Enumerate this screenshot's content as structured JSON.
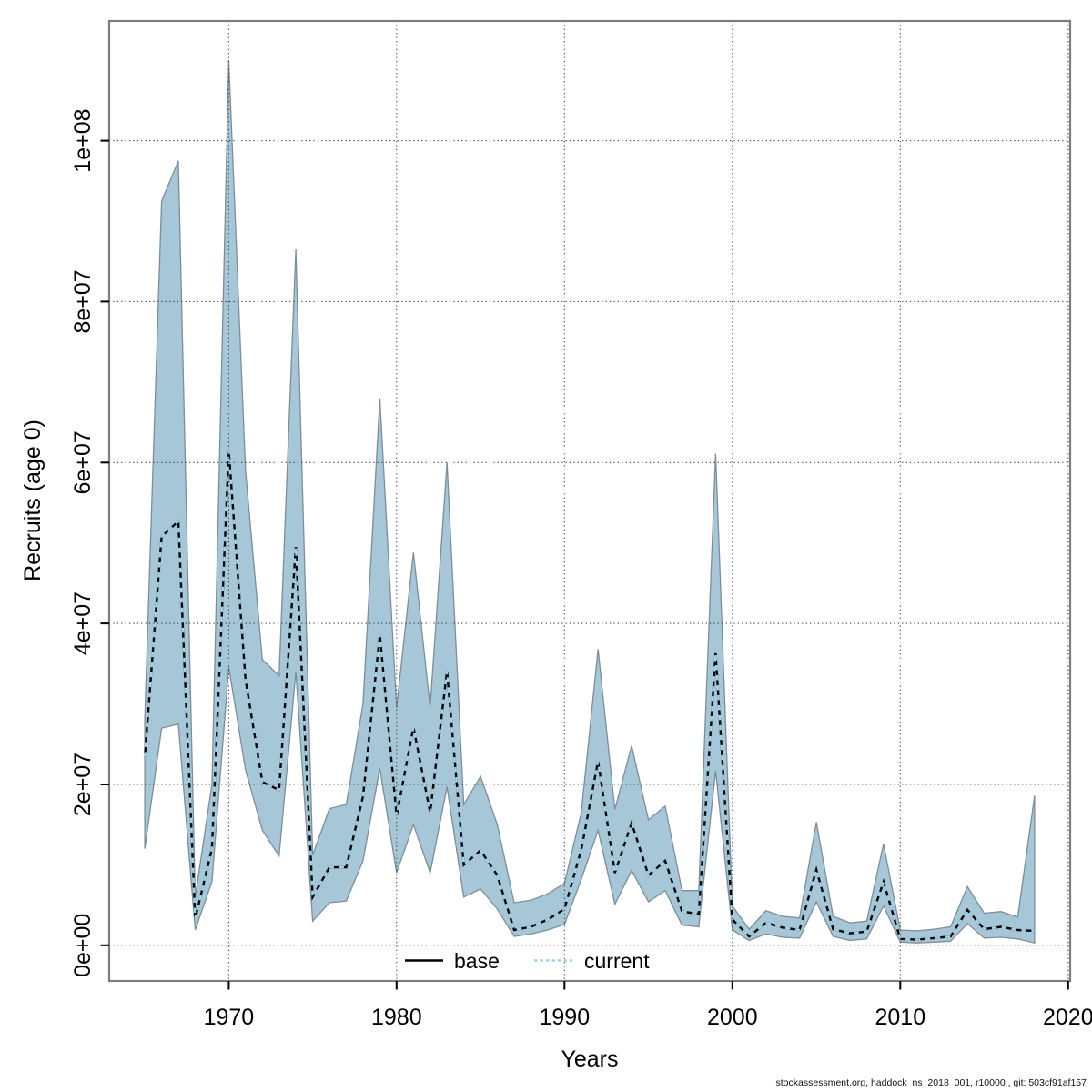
{
  "chart_data": {
    "type": "area",
    "title": "",
    "xlabel": "Years",
    "ylabel": "Recruits (age 0)",
    "x": [
      1965,
      1966,
      1967,
      1968,
      1969,
      1970,
      1971,
      1972,
      1973,
      1974,
      1975,
      1976,
      1977,
      1978,
      1979,
      1980,
      1981,
      1982,
      1983,
      1984,
      1985,
      1986,
      1987,
      1988,
      1989,
      1990,
      1991,
      1992,
      1993,
      1994,
      1995,
      1996,
      1997,
      1998,
      1999,
      2000,
      2001,
      2002,
      2003,
      2004,
      2005,
      2006,
      2007,
      2008,
      2009,
      2010,
      2011,
      2012,
      2013,
      2014,
      2015,
      2016,
      2017,
      2018
    ],
    "series": [
      {
        "name": "current (median recruitment)",
        "values": [
          23400000,
          50800000,
          52700000,
          3300000,
          12000000,
          61500000,
          33000000,
          20300000,
          19300000,
          49500000,
          6000000,
          9700000,
          9700000,
          18500000,
          38600000,
          16100000,
          27100000,
          16500000,
          34100000,
          10000000,
          11800000,
          8700000,
          1900000,
          2300000,
          3200000,
          4500000,
          11900000,
          22900000,
          9000000,
          15200000,
          8700000,
          10500000,
          4200000,
          3900000,
          36300000,
          3200000,
          1100000,
          2800000,
          2200000,
          1900000,
          9400000,
          2000000,
          1500000,
          1700000,
          7900000,
          800000,
          700000,
          900000,
          1100000,
          4400000,
          2000000,
          2300000,
          1900000,
          1800000
        ]
      },
      {
        "name": "confidence band lower",
        "values": [
          12000000,
          27000000,
          27500000,
          1900000,
          7900000,
          34600000,
          21800000,
          14300000,
          11100000,
          34000000,
          3000000,
          5300000,
          5500000,
          10500000,
          22000000,
          9000000,
          15000000,
          9000000,
          19700000,
          6000000,
          7000000,
          4500000,
          1100000,
          1400000,
          1900000,
          2600000,
          8200000,
          14300000,
          5100000,
          9300000,
          5400000,
          6800000,
          2500000,
          2300000,
          21700000,
          1900000,
          600000,
          1400000,
          1000000,
          900000,
          5400000,
          1100000,
          600000,
          800000,
          4900000,
          400000,
          300000,
          400000,
          500000,
          2700000,
          900000,
          1000000,
          800000,
          300000
        ]
      },
      {
        "name": "confidence band upper",
        "values": [
          28200000,
          92500000,
          97500000,
          6000000,
          20000000,
          110000000,
          59000000,
          35500000,
          33500000,
          86500000,
          11200000,
          17000000,
          17500000,
          30000000,
          68000000,
          29500000,
          48800000,
          29600000,
          60000000,
          17500000,
          21000000,
          15000000,
          5300000,
          5600000,
          6400000,
          7700000,
          16500000,
          36800000,
          16900000,
          24800000,
          15600000,
          17300000,
          6800000,
          6800000,
          61100000,
          4900000,
          2000000,
          4300000,
          3600000,
          3400000,
          15300000,
          3600000,
          2800000,
          3000000,
          12600000,
          1900000,
          1800000,
          2000000,
          2300000,
          7300000,
          4000000,
          4200000,
          3500000,
          18600000
        ]
      }
    ],
    "legend": [
      {
        "label": "base",
        "line": "solid",
        "color": "#000000"
      },
      {
        "label": "current",
        "line": "dashed",
        "color": "#9fd4e8"
      }
    ],
    "legend_position": "bottom-center-inside",
    "x_ticks": [
      1970,
      1980,
      1990,
      2000,
      2010,
      2020
    ],
    "y_ticks": {
      "values": [
        0,
        20000000,
        40000000,
        60000000,
        80000000,
        100000000
      ],
      "labels": [
        "0e+00",
        "2e+07",
        "4e+07",
        "6e+07",
        "8e+07",
        "1e+08"
      ]
    },
    "xlim": [
      1962.88,
      2020.12
    ],
    "ylim": [
      -4430000,
      114880000
    ],
    "grid": true,
    "colors": {
      "band_fill": "#a5c7d8",
      "band_border": "#7e8d98",
      "median_black": "#000000",
      "median_blue": "#9fd4e8",
      "frame": "#7d7d7d",
      "grid": "#3a3a3a",
      "tick": "#000000"
    }
  },
  "footer": {
    "text": "stockassessment.org, haddock  ns  2018  001, r10000 , git: 503cf91af157"
  }
}
